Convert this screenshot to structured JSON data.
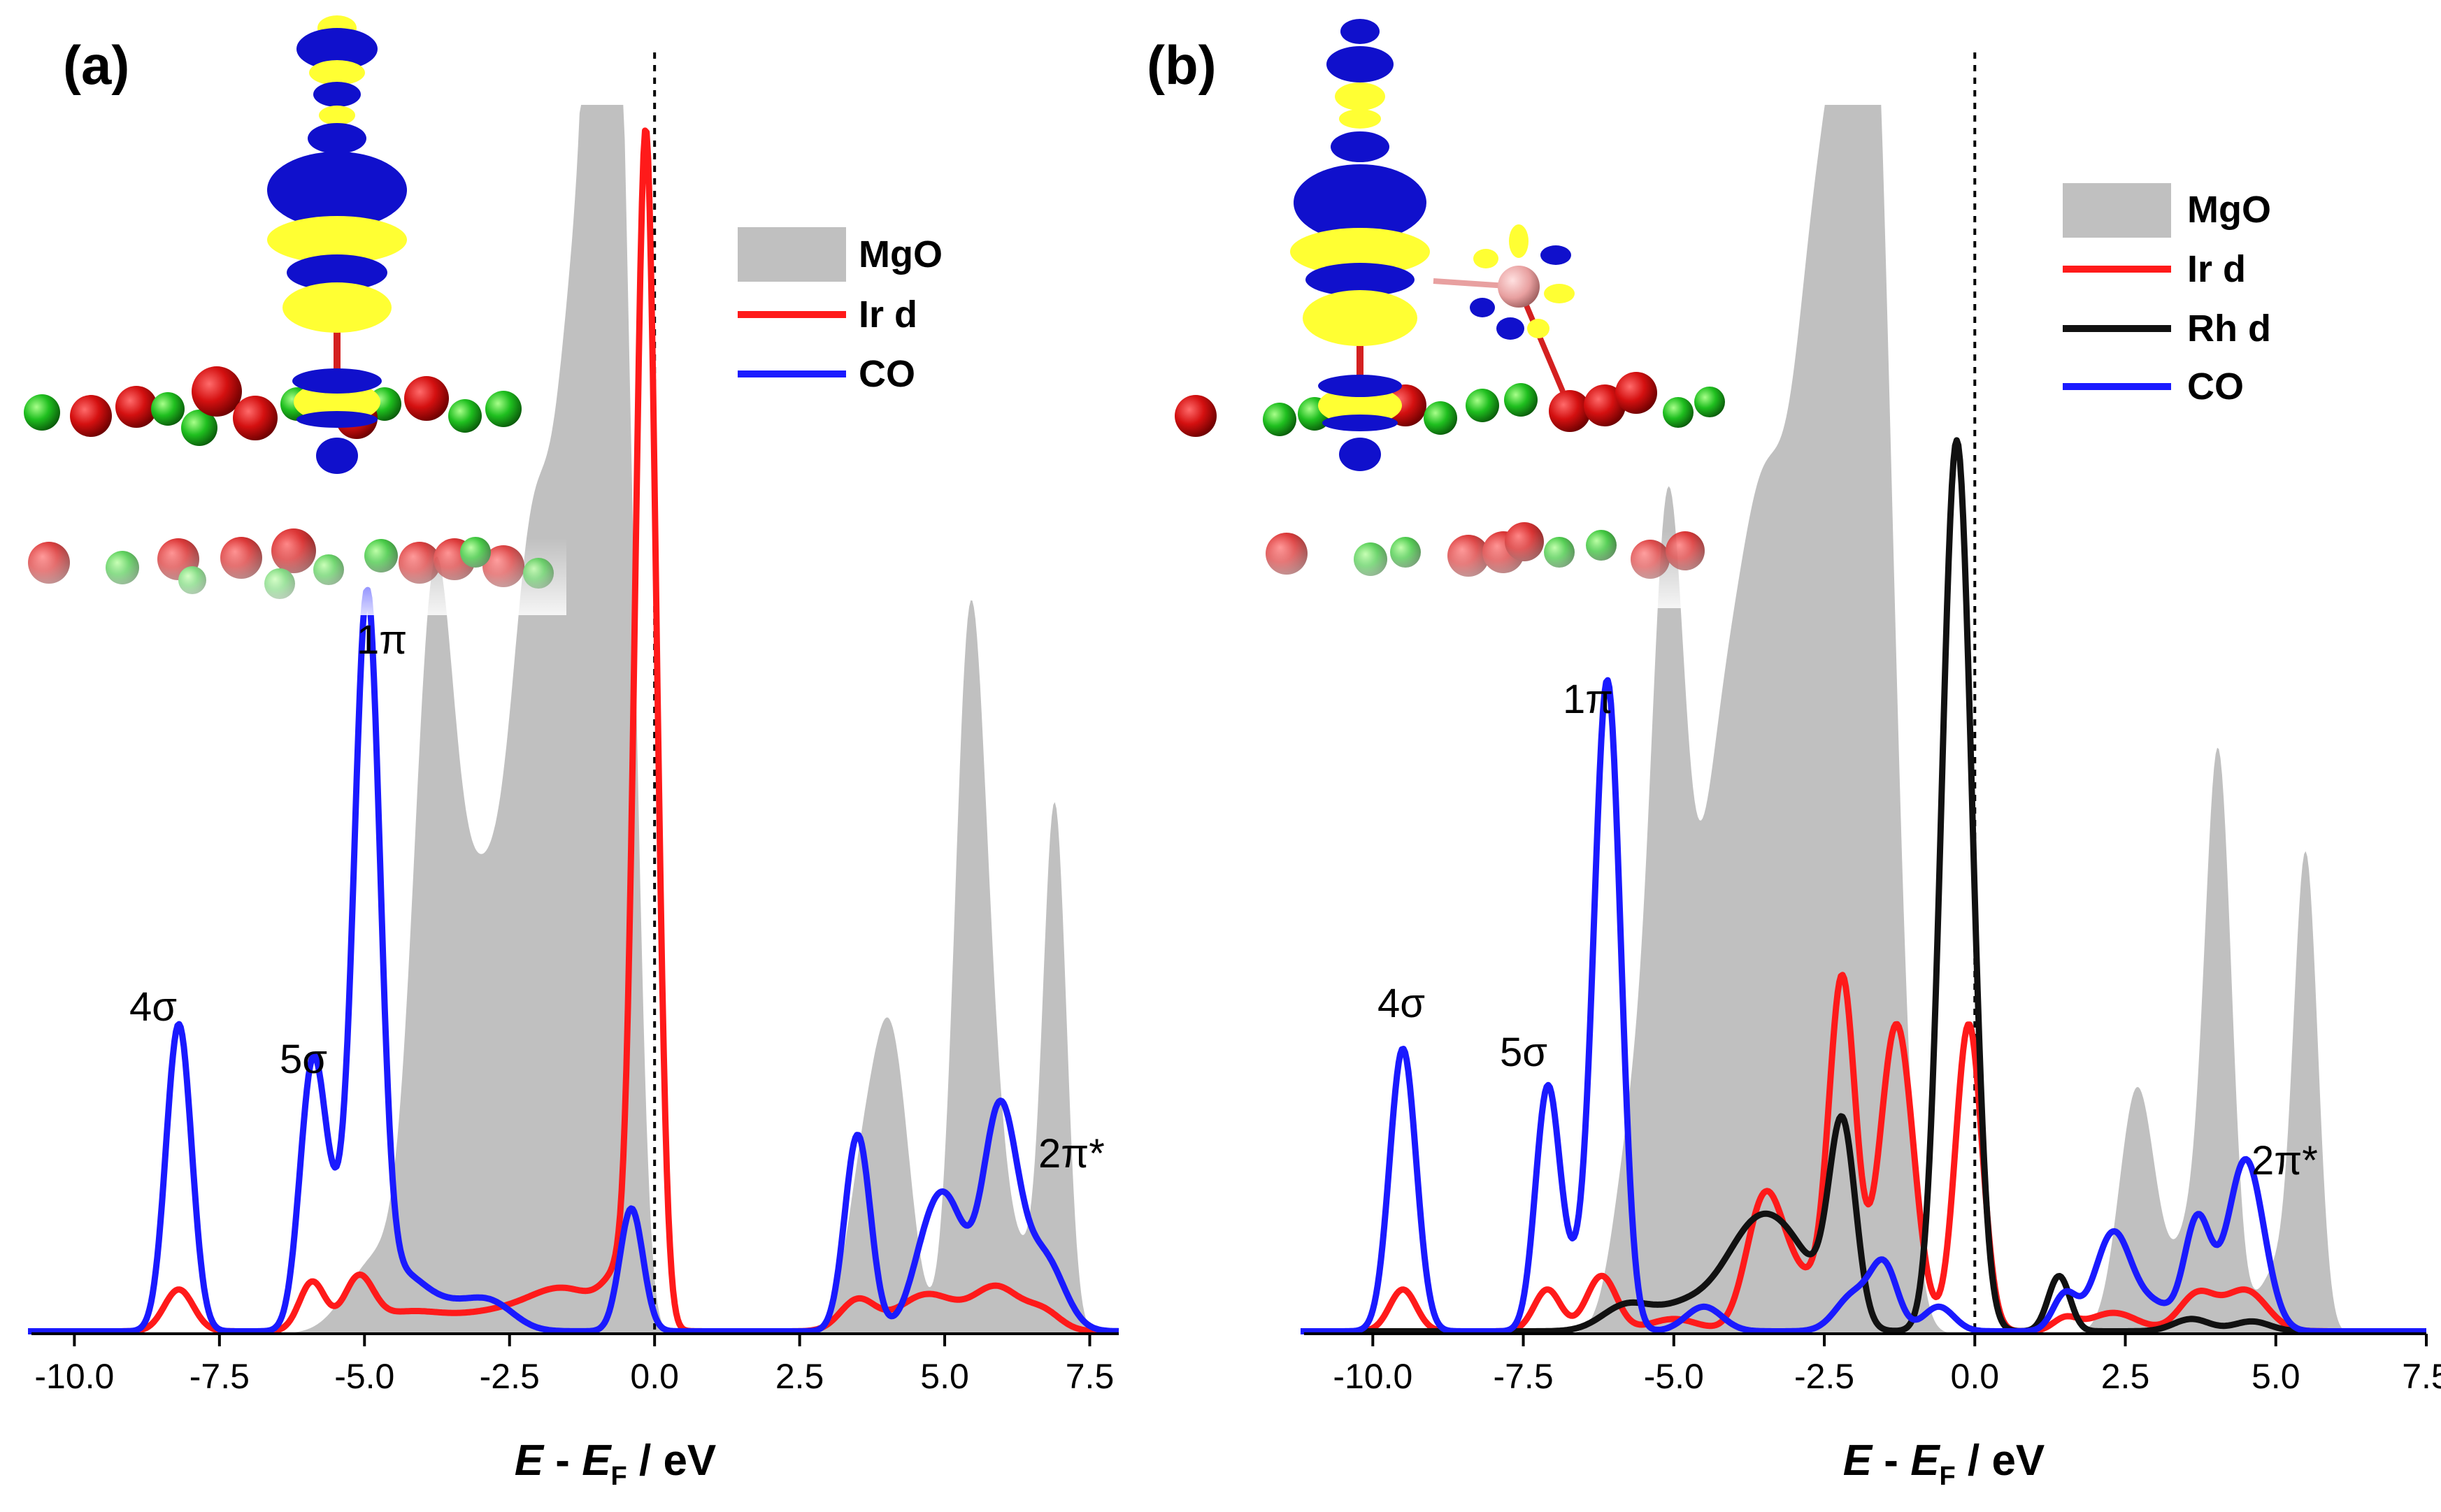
{
  "chart_data": [
    {
      "type": "line",
      "panel": "(a)",
      "xlabel": "E - E_F / eV",
      "xlabel_parts": {
        "e": "E",
        "dash": " - ",
        "ef": "E",
        "sub": "F",
        "unit": " / eV"
      },
      "xlim": [
        -10.8,
        8.0
      ],
      "ylim": [
        0,
        1.0
      ],
      "xticks": [
        -10.0,
        -7.5,
        -5.0,
        -2.5,
        0.0,
        2.5,
        5.0,
        7.5
      ],
      "xtick_labels": [
        "-10.0",
        "-7.5",
        "-5.0",
        "-2.5",
        "0.0",
        "2.5",
        "5.0",
        "7.5"
      ],
      "fermi_line_x": 0.0,
      "legend": [
        "MgO",
        "Ir d",
        "CO"
      ],
      "annotations": [
        {
          "text": "4σ",
          "x": -8.2
        },
        {
          "text": "5σ",
          "x": -5.9
        },
        {
          "text": "1π",
          "x": -5.0
        },
        {
          "text": "2π*",
          "x": 6.9
        }
      ],
      "series": [
        {
          "name": "MgO",
          "style": "fill",
          "color": "#c0c0c0",
          "peaks": [
            [
              -4.8,
              0.06,
              0.5
            ],
            [
              -3.8,
              0.58,
              0.35
            ],
            [
              -3.0,
              0.3,
              0.4
            ],
            [
              -2.1,
              0.6,
              0.4
            ],
            [
              -1.3,
              0.75,
              0.35
            ],
            [
              -0.85,
              1.25,
              0.22
            ],
            [
              -0.45,
              0.55,
              0.2
            ],
            [
              3.6,
              0.12,
              0.3
            ],
            [
              4.1,
              0.22,
              0.3
            ],
            [
              5.4,
              0.45,
              0.25
            ],
            [
              5.7,
              0.22,
              0.3
            ],
            [
              6.9,
              0.42,
              0.2
            ],
            [
              6.4,
              0.05,
              0.3
            ]
          ]
        },
        {
          "name": "Ir d",
          "style": "line",
          "color": "#ff1a1a",
          "peaks": [
            [
              -8.2,
              0.034,
              0.25
            ],
            [
              -5.9,
              0.04,
              0.22
            ],
            [
              -5.1,
              0.04,
              0.25
            ],
            [
              -4.3,
              0.014,
              0.6
            ],
            [
              -2.7,
              0.015,
              0.8
            ],
            [
              -1.5,
              0.03,
              0.6
            ],
            [
              -0.15,
              0.96,
              0.18
            ],
            [
              -0.55,
              0.04,
              0.3
            ],
            [
              3.5,
              0.025,
              0.3
            ],
            [
              4.7,
              0.03,
              0.5
            ],
            [
              5.9,
              0.035,
              0.4
            ],
            [
              6.7,
              0.015,
              0.3
            ]
          ]
        },
        {
          "name": "CO",
          "style": "line",
          "color": "#1a1aff",
          "peaks": [
            [
              -8.2,
              0.25,
              0.22
            ],
            [
              -5.9,
              0.2,
              0.22
            ],
            [
              -5.45,
              0.07,
              0.3
            ],
            [
              -4.95,
              0.57,
              0.22
            ],
            [
              -4.4,
              0.04,
              0.4
            ],
            [
              -3.6,
              0.02,
              0.5
            ],
            [
              -2.8,
              0.02,
              0.4
            ],
            [
              -0.4,
              0.1,
              0.2
            ],
            [
              3.5,
              0.16,
              0.22
            ],
            [
              4.7,
              0.06,
              0.3
            ],
            [
              5.1,
              0.08,
              0.3
            ],
            [
              5.95,
              0.18,
              0.3
            ],
            [
              6.7,
              0.06,
              0.35
            ]
          ]
        }
      ]
    },
    {
      "type": "line",
      "panel": "(b)",
      "xlabel": "E - E_F / eV",
      "xlabel_parts": {
        "e": "E",
        "dash": " - ",
        "ef": "E",
        "sub": "F",
        "unit": " / eV"
      },
      "xlim": [
        -11.2,
        7.5
      ],
      "ylim": [
        0,
        1.0
      ],
      "xticks": [
        -10.0,
        -7.5,
        -5.0,
        -2.5,
        0.0,
        2.5,
        5.0,
        7.5
      ],
      "xtick_labels": [
        "-10.0",
        "-7.5",
        "-5.0",
        "-2.5",
        "0.0",
        "2.5",
        "5.0",
        "7.5"
      ],
      "fermi_line_x": 0.0,
      "legend": [
        "MgO",
        "Ir d",
        "Rh d",
        "CO"
      ],
      "annotations": [
        {
          "text": "4σ",
          "x": -9.5
        },
        {
          "text": "5σ",
          "x": -7.1
        },
        {
          "text": "1π",
          "x": -6.1
        },
        {
          "text": "2π*",
          "x": 5.4
        }
      ],
      "series": [
        {
          "name": "MgO",
          "style": "fill",
          "color": "#c0c0c0",
          "peaks": [
            [
              -5.7,
              0.15,
              0.3
            ],
            [
              -5.1,
              0.62,
              0.28
            ],
            [
              -4.3,
              0.35,
              0.4
            ],
            [
              -3.5,
              0.6,
              0.45
            ],
            [
              -2.6,
              0.75,
              0.4
            ],
            [
              -1.9,
              0.95,
              0.35
            ],
            [
              -1.5,
              0.4,
              0.3
            ],
            [
              2.7,
              0.2,
              0.3
            ],
            [
              4.05,
              0.45,
              0.22
            ],
            [
              3.6,
              0.08,
              0.3
            ],
            [
              5.5,
              0.38,
              0.2
            ],
            [
              5.0,
              0.05,
              0.3
            ]
          ]
        },
        {
          "name": "Ir d",
          "style": "line",
          "color": "#ff1a1a",
          "peaks": [
            [
              -9.5,
              0.034,
              0.22
            ],
            [
              -7.1,
              0.034,
              0.22
            ],
            [
              -6.2,
              0.045,
              0.25
            ],
            [
              -5.0,
              0.01,
              0.4
            ],
            [
              -3.5,
              0.1,
              0.3
            ],
            [
              -2.9,
              0.04,
              0.4
            ],
            [
              -2.2,
              0.28,
              0.22
            ],
            [
              -1.3,
              0.25,
              0.28
            ],
            [
              -0.1,
              0.25,
              0.22
            ],
            [
              1.5,
              0.01,
              0.2
            ],
            [
              2.3,
              0.015,
              0.4
            ],
            [
              3.7,
              0.03,
              0.3
            ],
            [
              4.5,
              0.033,
              0.35
            ]
          ]
        },
        {
          "name": "Rh d",
          "style": "line",
          "color": "#111111",
          "peaks": [
            [
              -5.8,
              0.02,
              0.4
            ],
            [
              -4.8,
              0.02,
              0.5
            ],
            [
              -3.7,
              0.07,
              0.5
            ],
            [
              -3.0,
              0.05,
              0.5
            ],
            [
              -2.2,
              0.16,
              0.22
            ],
            [
              -0.3,
              0.725,
              0.25
            ],
            [
              1.4,
              0.045,
              0.18
            ],
            [
              3.6,
              0.01,
              0.3
            ],
            [
              4.6,
              0.008,
              0.3
            ]
          ]
        },
        {
          "name": "CO",
          "style": "line",
          "color": "#1a1aff",
          "peaks": [
            [
              -9.5,
              0.23,
              0.22
            ],
            [
              -7.1,
              0.19,
              0.2
            ],
            [
              -6.6,
              0.04,
              0.3
            ],
            [
              -6.1,
              0.52,
              0.22
            ],
            [
              -4.5,
              0.02,
              0.3
            ],
            [
              -2.0,
              0.03,
              0.3
            ],
            [
              -1.5,
              0.05,
              0.22
            ],
            [
              -0.6,
              0.02,
              0.25
            ],
            [
              1.5,
              0.03,
              0.2
            ],
            [
              2.3,
              0.08,
              0.3
            ],
            [
              3.0,
              0.02,
              0.3
            ],
            [
              3.7,
              0.09,
              0.22
            ],
            [
              4.5,
              0.14,
              0.3
            ]
          ]
        }
      ]
    }
  ],
  "figure_caption_labels": {
    "a": "(a)",
    "b": "(b)"
  }
}
